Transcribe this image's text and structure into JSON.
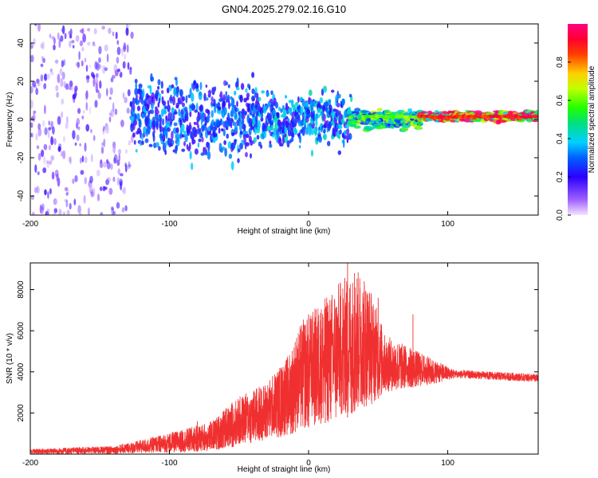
{
  "title": "GN04.2025.279.02.16.G10",
  "colors": {
    "snr_line": "#f03030",
    "spectrogram_low": "#6a00ff",
    "spectrogram_mid": "#00e060",
    "spectrogram_high": "#ff2020"
  },
  "chart_data": [
    {
      "type": "heatmap",
      "name": "spectrogram",
      "xlabel": "Height of straight line (km)",
      "ylabel": "Frequency (Hz)",
      "xlim": [
        -200,
        165
      ],
      "ylim": [
        -50,
        50
      ],
      "xticks": [
        -200,
        -100,
        0,
        100
      ],
      "yticks": [
        -40,
        -20,
        0,
        20,
        40
      ],
      "colorbar": {
        "label": "Normalized spectral amplitude",
        "range": [
          0,
          1
        ],
        "ticks": [
          "0.0",
          "0.2",
          "0.4",
          "0.6",
          "0.8"
        ]
      },
      "regions": [
        {
          "x": [
            -200,
            -128
          ],
          "freq_spread": 50,
          "amplitude": 0.1,
          "description": "broadband noise"
        },
        {
          "x": [
            -128,
            -40
          ],
          "freq_spread": 18,
          "amplitude": 0.3
        },
        {
          "x": [
            -40,
            30
          ],
          "freq_spread": 12,
          "amplitude": 0.35
        },
        {
          "x": [
            30,
            80
          ],
          "freq_spread": 4,
          "amplitude": 0.55
        },
        {
          "x": [
            80,
            165
          ],
          "freq_spread": 2,
          "amplitude": 0.9,
          "center_freq": 1.5
        }
      ]
    },
    {
      "type": "line",
      "name": "snr",
      "xlabel": "Height of straight line (km)",
      "ylabel": "SNR (10 * v/v)",
      "xlim": [
        -200,
        165
      ],
      "ylim": [
        0,
        9300
      ],
      "xticks": [
        -200,
        -100,
        0,
        100
      ],
      "yticks": [
        2000,
        4000,
        6000,
        8000
      ],
      "envelope": [
        {
          "x": -200,
          "low": 0,
          "high": 250
        },
        {
          "x": -140,
          "low": 20,
          "high": 400
        },
        {
          "x": -120,
          "low": 50,
          "high": 700
        },
        {
          "x": -90,
          "low": 80,
          "high": 1200
        },
        {
          "x": -70,
          "low": 150,
          "high": 1600
        },
        {
          "x": -50,
          "low": 400,
          "high": 2800
        },
        {
          "x": -30,
          "low": 700,
          "high": 3500
        },
        {
          "x": -15,
          "low": 900,
          "high": 4800
        },
        {
          "x": -5,
          "low": 1200,
          "high": 6500
        },
        {
          "x": 10,
          "low": 1500,
          "high": 7500
        },
        {
          "x": 25,
          "low": 1600,
          "high": 8600
        },
        {
          "x": 35,
          "low": 2200,
          "high": 9000
        },
        {
          "x": 45,
          "low": 2400,
          "high": 8000
        },
        {
          "x": 55,
          "low": 3000,
          "high": 5800
        },
        {
          "x": 70,
          "low": 3200,
          "high": 5300
        },
        {
          "x": 90,
          "low": 3400,
          "high": 4600
        },
        {
          "x": 105,
          "low": 3700,
          "high": 4100
        },
        {
          "x": 165,
          "low": 3500,
          "high": 3900
        }
      ],
      "spikes": [
        {
          "x": -80,
          "high": 1600
        },
        {
          "x": -55,
          "high": 2500
        },
        {
          "x": -20,
          "high": 4200
        },
        {
          "x": -12,
          "high": 4500
        },
        {
          "x": 0,
          "high": 6800
        },
        {
          "x": 12,
          "high": 6200
        },
        {
          "x": 28,
          "high": 9300
        },
        {
          "x": 33,
          "high": 8800
        },
        {
          "x": 40,
          "high": 8400
        },
        {
          "x": 50,
          "high": 7600
        },
        {
          "x": 75,
          "high": 6800
        }
      ]
    }
  ]
}
